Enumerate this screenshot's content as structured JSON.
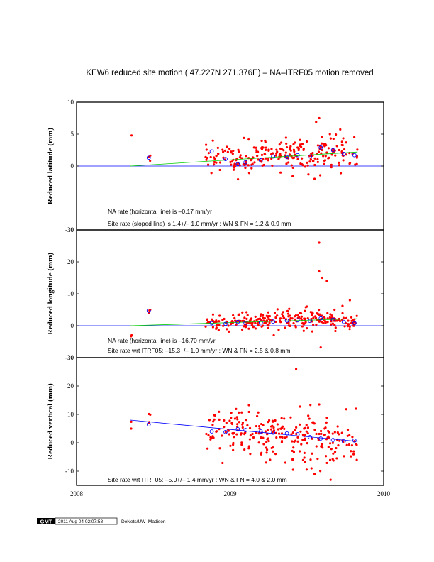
{
  "title": "KEW6 reduced site motion ( 47.227N 271.376E) – NA–ITRF05 motion removed",
  "colors": {
    "points": "#ff0000",
    "averages": "#0000ff",
    "horizontal_line": "#0000ff",
    "sloped_line": "#00cc00",
    "vertical_fit": "#0000ff"
  },
  "footer": {
    "logo": "GMT",
    "timestamp": "2011 Aug 04 02:07:58",
    "credit": "DeNets/UW–Madison"
  },
  "chart_data": [
    {
      "type": "scatter",
      "ylabel": "Reduced latitude (mm)",
      "xlim": [
        2008,
        2010
      ],
      "ylim": [
        -10,
        10
      ],
      "x_ticks": [
        "2008",
        "2009",
        "2010"
      ],
      "y_ticks": [
        "-10",
        "0",
        "5",
        "10"
      ],
      "annotations": [
        "NA rate (horizontal line) is –0.17 mm/yr",
        "Site rate (sloped line) is  1.4+/– 1.0 mm/yr : WN & FN =  1.2 &  0.9 mm"
      ],
      "horizontal_line": 0,
      "trend_line": {
        "x": [
          2008.35,
          2009.83
        ],
        "y": [
          0.0,
          2.2
        ],
        "color": "green"
      },
      "clusters": [
        {
          "x0": 2008.35,
          "x1": 2008.36,
          "mean": 4.8,
          "sd": 0,
          "n": 1
        },
        {
          "x0": 2008.47,
          "x1": 2008.48,
          "mean": 1.5,
          "sd": 0.3,
          "n": 3
        },
        {
          "x0": 2008.84,
          "x1": 2009.0,
          "mean": 1.7,
          "sd": 1.0,
          "n": 30
        },
        {
          "x0": 2009.0,
          "x1": 2009.2,
          "mean": 0.9,
          "sd": 1.2,
          "n": 55
        },
        {
          "x0": 2009.2,
          "x1": 2009.4,
          "mean": 1.6,
          "sd": 1.3,
          "n": 60
        },
        {
          "x0": 2009.4,
          "x1": 2009.6,
          "mean": 1.8,
          "sd": 1.4,
          "n": 60
        },
        {
          "x0": 2009.6,
          "x1": 2009.83,
          "mean": 2.0,
          "sd": 1.5,
          "n": 55
        }
      ],
      "outliers": [
        [
          2009.56,
          6.9
        ],
        [
          2009.58,
          7.5
        ],
        [
          2009.51,
          -1.3
        ],
        [
          2009.55,
          -2.0
        ],
        [
          2009.65,
          5.0
        ],
        [
          2009.09,
          4.4
        ]
      ],
      "averages": [
        [
          2008.47,
          1.3
        ],
        [
          2008.88,
          2.3
        ],
        [
          2008.97,
          1.1
        ],
        [
          2009.05,
          0.3
        ],
        [
          2009.1,
          0.6
        ],
        [
          2009.2,
          0.9
        ],
        [
          2009.28,
          1.5
        ],
        [
          2009.37,
          1.4
        ],
        [
          2009.44,
          1.7
        ],
        [
          2009.52,
          1.5
        ],
        [
          2009.59,
          2.9
        ],
        [
          2009.67,
          2.5
        ],
        [
          2009.74,
          1.9
        ],
        [
          2009.81,
          1.7
        ]
      ]
    },
    {
      "type": "scatter",
      "ylabel": "Reduced longitude (mm)",
      "xlim": [
        2008,
        2010
      ],
      "ylim": [
        -10,
        30
      ],
      "x_ticks": [
        "2008",
        "2009",
        "2010"
      ],
      "y_ticks": [
        "-10",
        "0",
        "10",
        "20",
        "30"
      ],
      "annotations": [
        "NA rate (horizontal line) is –16.70 mm/yr",
        "Site rate wrt ITRF05: –15.3+/– 1.0 mm/yr : WN & FN =  2.5 &  0.8 mm"
      ],
      "horizontal_line": 0,
      "trend_line": {
        "x": [
          2008.35,
          2009.83
        ],
        "y": [
          0.0,
          2.2
        ],
        "color": "green"
      },
      "clusters": [
        {
          "x0": 2008.35,
          "x1": 2008.36,
          "mean": -3.5,
          "sd": 2.0,
          "n": 2
        },
        {
          "x0": 2008.47,
          "x1": 2008.48,
          "mean": 4.5,
          "sd": 0.4,
          "n": 3
        },
        {
          "x0": 2008.84,
          "x1": 2009.0,
          "mean": 0.8,
          "sd": 1.5,
          "n": 30
        },
        {
          "x0": 2009.0,
          "x1": 2009.2,
          "mean": 1.2,
          "sd": 1.4,
          "n": 55
        },
        {
          "x0": 2009.2,
          "x1": 2009.4,
          "mean": 1.5,
          "sd": 1.5,
          "n": 60
        },
        {
          "x0": 2009.4,
          "x1": 2009.6,
          "mean": 1.6,
          "sd": 1.6,
          "n": 60
        },
        {
          "x0": 2009.6,
          "x1": 2009.83,
          "mean": 1.5,
          "sd": 1.5,
          "n": 55
        }
      ],
      "outliers": [
        [
          2009.58,
          26.0
        ],
        [
          2009.58,
          17.0
        ],
        [
          2009.6,
          15.0
        ],
        [
          2009.63,
          14.0
        ],
        [
          2009.78,
          8.0
        ],
        [
          2009.59,
          -6.8
        ],
        [
          2009.5,
          6.0
        ],
        [
          2009.68,
          5.0
        ]
      ],
      "averages": [
        [
          2008.47,
          4.7
        ],
        [
          2008.88,
          0.8
        ],
        [
          2008.97,
          0.6
        ],
        [
          2009.05,
          1.2
        ],
        [
          2009.1,
          0.9
        ],
        [
          2009.2,
          1.0
        ],
        [
          2009.28,
          1.3
        ],
        [
          2009.37,
          1.6
        ],
        [
          2009.44,
          1.7
        ],
        [
          2009.52,
          1.5
        ],
        [
          2009.59,
          2.3
        ],
        [
          2009.67,
          1.9
        ],
        [
          2009.74,
          1.2
        ],
        [
          2009.81,
          0.8
        ]
      ]
    },
    {
      "type": "scatter",
      "ylabel": "Reduced vertical (mm)",
      "xlim": [
        2008,
        2010
      ],
      "ylim": [
        -15,
        30
      ],
      "x_ticks": [
        "2008",
        "2009",
        "2010"
      ],
      "y_ticks": [
        "-10",
        "0",
        "10",
        "20",
        "30"
      ],
      "annotations": [
        "Site rate wrt ITRF05: –5.0+/– 1.4 mm/yr : WN & FN =  4.0 &  2.0 mm"
      ],
      "horizontal_line": null,
      "trend_line": {
        "x": [
          2008.35,
          2009.83
        ],
        "y": [
          8.0,
          0.5
        ],
        "color": "blue"
      },
      "clusters": [
        {
          "x0": 2008.35,
          "x1": 2008.36,
          "mean": 4.0,
          "sd": 4.0,
          "n": 2
        },
        {
          "x0": 2008.47,
          "x1": 2008.48,
          "mean": 7.5,
          "sd": 3.0,
          "n": 4
        },
        {
          "x0": 2008.84,
          "x1": 2009.0,
          "mean": 4.5,
          "sd": 3.5,
          "n": 30
        },
        {
          "x0": 2009.0,
          "x1": 2009.2,
          "mean": 4.5,
          "sd": 3.5,
          "n": 55
        },
        {
          "x0": 2009.2,
          "x1": 2009.4,
          "mean": 3.5,
          "sd": 4.0,
          "n": 60
        },
        {
          "x0": 2009.4,
          "x1": 2009.6,
          "mean": 2.0,
          "sd": 4.5,
          "n": 60
        },
        {
          "x0": 2009.6,
          "x1": 2009.83,
          "mean": 0.5,
          "sd": 4.0,
          "n": 55
        }
      ],
      "outliers": [
        [
          2009.43,
          26.0
        ],
        [
          2009.58,
          13.5
        ],
        [
          2009.82,
          12.0
        ],
        [
          2009.55,
          -11.0
        ],
        [
          2009.53,
          -9.0
        ],
        [
          2009.41,
          -9.5
        ],
        [
          2009.36,
          -7.0
        ]
      ],
      "averages": [
        [
          2008.47,
          6.5
        ],
        [
          2008.88,
          4.0
        ],
        [
          2008.97,
          3.8
        ],
        [
          2009.05,
          4.8
        ],
        [
          2009.1,
          4.5
        ],
        [
          2009.2,
          4.0
        ],
        [
          2009.28,
          3.6
        ],
        [
          2009.37,
          3.3
        ],
        [
          2009.44,
          3.0
        ],
        [
          2009.52,
          2.0
        ],
        [
          2009.59,
          1.5
        ],
        [
          2009.67,
          1.0
        ],
        [
          2009.74,
          0.5
        ],
        [
          2009.81,
          0.8
        ]
      ]
    }
  ]
}
